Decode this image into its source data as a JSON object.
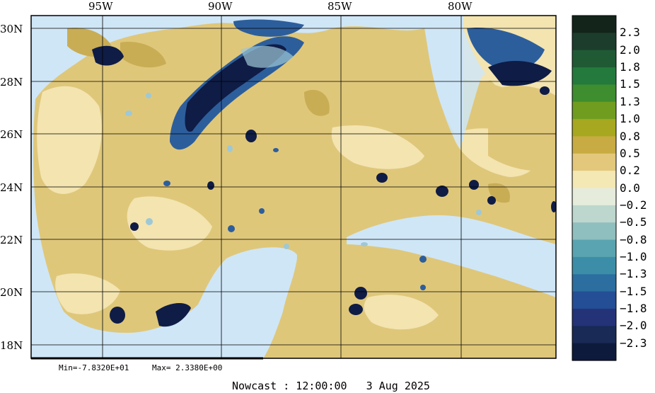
{
  "map": {
    "lon_labels": [
      "95W",
      "90W",
      "85W",
      "80W"
    ],
    "lat_labels": [
      "30N",
      "28N",
      "26N",
      "24N",
      "22N",
      "20N",
      "18N"
    ],
    "min_text": "Min=-7.8320E+01",
    "max_text": "Max= 2.3380E+00",
    "caption": "Nowcast : 12:00:00   3 Aug 2025",
    "colors": {
      "water": "#cfe6f7",
      "land_base": "#dfc77a",
      "land_light": "#f3e4b0",
      "land_mid": "#c9ad55",
      "neg_dark": "#0f1c45",
      "neg_mid": "#2d5e9c",
      "neg_light": "#9ec8d6"
    }
  },
  "colorbar": {
    "labels": [
      "2.3",
      "2.0",
      "1.8",
      "1.5",
      "1.3",
      "1.0",
      "0.8",
      "0.5",
      "0.2",
      "0.0",
      "−0.2",
      "−0.5",
      "−0.8",
      "−1.0",
      "−1.3",
      "−1.5",
      "−1.8",
      "−2.0",
      "−2.3"
    ],
    "colors": [
      "#13241b",
      "#1c3d2c",
      "#1f5a34",
      "#237a3c",
      "#3e8d2f",
      "#709d1f",
      "#a7a81f",
      "#c8ab43",
      "#e3c87c",
      "#f4e8b4",
      "#e6ecdc",
      "#bdd7ce",
      "#8fbfbe",
      "#5aa4b1",
      "#3c8ea8",
      "#2b6e9f",
      "#244e95",
      "#243378",
      "#182a55",
      "#0e1a3c"
    ]
  }
}
